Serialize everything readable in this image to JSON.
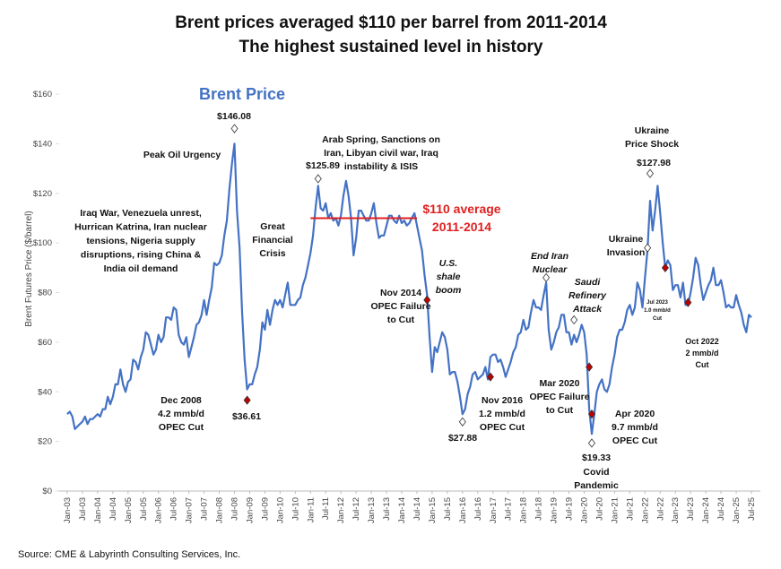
{
  "chart_data": {
    "type": "line",
    "title": [
      "Brent prices averaged $110 per barrel from 2011-2014",
      "The highest sustained level in history"
    ],
    "y_label": "Brent Futures Price ($/barrel)",
    "source": "Source: CME & Labyrinth Consulting Services, Inc.",
    "xlim": [
      "2003-01",
      "2025-07"
    ],
    "ylim": [
      0,
      160
    ],
    "yticks": [
      {
        "value": 0,
        "label": "$0"
      },
      {
        "value": 20,
        "label": "$20"
      },
      {
        "value": 40,
        "label": "$40"
      },
      {
        "value": 60,
        "label": "$60"
      },
      {
        "value": 80,
        "label": "$80"
      },
      {
        "value": 100,
        "label": "$100"
      },
      {
        "value": 120,
        "label": "$120"
      },
      {
        "value": 140,
        "label": "$140"
      },
      {
        "value": 160,
        "label": "$160"
      }
    ],
    "xticks": [
      {
        "value": "2003-01",
        "label": "Jan-03"
      },
      {
        "value": "2003-07",
        "label": "Jul-03"
      },
      {
        "value": "2004-01",
        "label": "Jan-04"
      },
      {
        "value": "2004-07",
        "label": "Jul-04"
      },
      {
        "value": "2005-01",
        "label": "Jan-05"
      },
      {
        "value": "2005-07",
        "label": "Jul-05"
      },
      {
        "value": "2006-01",
        "label": "Jan-06"
      },
      {
        "value": "2006-07",
        "label": "Jul-06"
      },
      {
        "value": "2007-01",
        "label": "Jan-07"
      },
      {
        "value": "2007-07",
        "label": "Jul-07"
      },
      {
        "value": "2008-01",
        "label": "Jan-08"
      },
      {
        "value": "2008-07",
        "label": "Jul-08"
      },
      {
        "value": "2009-01",
        "label": "Jan-09"
      },
      {
        "value": "2009-07",
        "label": "Jul-09"
      },
      {
        "value": "2010-01",
        "label": "Jan-10"
      },
      {
        "value": "2010-07",
        "label": "Jul-10"
      },
      {
        "value": "2011-01",
        "label": "Jan-11"
      },
      {
        "value": "2011-07",
        "label": "Jul-11"
      },
      {
        "value": "2012-01",
        "label": "Jan-12"
      },
      {
        "value": "2012-07",
        "label": "Jul-12"
      },
      {
        "value": "2013-01",
        "label": "Jan-13"
      },
      {
        "value": "2013-07",
        "label": "Jul-13"
      },
      {
        "value": "2014-01",
        "label": "Jan-14"
      },
      {
        "value": "2014-07",
        "label": "Jul-14"
      },
      {
        "value": "2015-01",
        "label": "Jan-15"
      },
      {
        "value": "2015-07",
        "label": "Jul-15"
      },
      {
        "value": "2016-01",
        "label": "Jan-16"
      },
      {
        "value": "2016-07",
        "label": "Jul-16"
      },
      {
        "value": "2017-01",
        "label": "Jan-17"
      },
      {
        "value": "2017-07",
        "label": "Jul-17"
      },
      {
        "value": "2018-01",
        "label": "Jan-18"
      },
      {
        "value": "2018-07",
        "label": "Jul-18"
      },
      {
        "value": "2019-01",
        "label": "Jan-19"
      },
      {
        "value": "2019-07",
        "label": "Jul-19"
      },
      {
        "value": "2020-01",
        "label": "Jan-20"
      },
      {
        "value": "2020-07",
        "label": "Jul-20"
      },
      {
        "value": "2021-01",
        "label": "Jan-21"
      },
      {
        "value": "2021-07",
        "label": "Jul-21"
      },
      {
        "value": "2022-01",
        "label": "Jan-22"
      },
      {
        "value": "2022-07",
        "label": "Jul-22"
      },
      {
        "value": "2023-01",
        "label": "Jan-23"
      },
      {
        "value": "2023-07",
        "label": "Jul-23"
      },
      {
        "value": "2024-01",
        "label": "Jan-24"
      },
      {
        "value": "2024-07",
        "label": "Jul-24"
      },
      {
        "value": "2025-01",
        "label": "Jan-25"
      },
      {
        "value": "2025-07",
        "label": "Jul-25"
      }
    ],
    "series": [
      {
        "name": "Brent Price",
        "color": "#4472c4",
        "x": [
          "2003-01",
          "2003-02",
          "2003-03",
          "2003-04",
          "2003-05",
          "2003-06",
          "2003-07",
          "2003-08",
          "2003-09",
          "2003-10",
          "2003-11",
          "2003-12",
          "2004-01",
          "2004-02",
          "2004-03",
          "2004-04",
          "2004-05",
          "2004-06",
          "2004-07",
          "2004-08",
          "2004-09",
          "2004-10",
          "2004-11",
          "2004-12",
          "2005-01",
          "2005-02",
          "2005-03",
          "2005-04",
          "2005-05",
          "2005-06",
          "2005-07",
          "2005-08",
          "2005-09",
          "2005-10",
          "2005-11",
          "2005-12",
          "2006-01",
          "2006-02",
          "2006-03",
          "2006-04",
          "2006-05",
          "2006-06",
          "2006-07",
          "2006-08",
          "2006-09",
          "2006-10",
          "2006-11",
          "2006-12",
          "2007-01",
          "2007-02",
          "2007-03",
          "2007-04",
          "2007-05",
          "2007-06",
          "2007-07",
          "2007-08",
          "2007-09",
          "2007-10",
          "2007-11",
          "2007-12",
          "2008-01",
          "2008-02",
          "2008-03",
          "2008-04",
          "2008-05",
          "2008-06",
          "2008-07",
          "2008-08",
          "2008-09",
          "2008-10",
          "2008-11",
          "2008-12",
          "2009-01",
          "2009-02",
          "2009-03",
          "2009-04",
          "2009-05",
          "2009-06",
          "2009-07",
          "2009-08",
          "2009-09",
          "2009-10",
          "2009-11",
          "2009-12",
          "2010-01",
          "2010-02",
          "2010-03",
          "2010-04",
          "2010-05",
          "2010-06",
          "2010-07",
          "2010-08",
          "2010-09",
          "2010-10",
          "2010-11",
          "2010-12",
          "2011-01",
          "2011-02",
          "2011-03",
          "2011-04",
          "2011-05",
          "2011-06",
          "2011-07",
          "2011-08",
          "2011-09",
          "2011-10",
          "2011-11",
          "2011-12",
          "2012-01",
          "2012-02",
          "2012-03",
          "2012-04",
          "2012-05",
          "2012-06",
          "2012-07",
          "2012-08",
          "2012-09",
          "2012-10",
          "2012-11",
          "2012-12",
          "2013-01",
          "2013-02",
          "2013-03",
          "2013-04",
          "2013-05",
          "2013-06",
          "2013-07",
          "2013-08",
          "2013-09",
          "2013-10",
          "2013-11",
          "2013-12",
          "2014-01",
          "2014-02",
          "2014-03",
          "2014-04",
          "2014-05",
          "2014-06",
          "2014-07",
          "2014-08",
          "2014-09",
          "2014-10",
          "2014-11",
          "2014-12",
          "2015-01",
          "2015-02",
          "2015-03",
          "2015-04",
          "2015-05",
          "2015-06",
          "2015-07",
          "2015-08",
          "2015-09",
          "2015-10",
          "2015-11",
          "2015-12",
          "2016-01",
          "2016-02",
          "2016-03",
          "2016-04",
          "2016-05",
          "2016-06",
          "2016-07",
          "2016-08",
          "2016-09",
          "2016-10",
          "2016-11",
          "2016-12",
          "2017-01",
          "2017-02",
          "2017-03",
          "2017-04",
          "2017-05",
          "2017-06",
          "2017-07",
          "2017-08",
          "2017-09",
          "2017-10",
          "2017-11",
          "2017-12",
          "2018-01",
          "2018-02",
          "2018-03",
          "2018-04",
          "2018-05",
          "2018-06",
          "2018-07",
          "2018-08",
          "2018-09",
          "2018-10",
          "2018-11",
          "2018-12",
          "2019-01",
          "2019-02",
          "2019-03",
          "2019-04",
          "2019-05",
          "2019-06",
          "2019-07",
          "2019-08",
          "2019-09",
          "2019-10",
          "2019-11",
          "2019-12",
          "2020-01",
          "2020-02",
          "2020-03",
          "2020-04",
          "2020-05",
          "2020-06",
          "2020-07",
          "2020-08",
          "2020-09",
          "2020-10",
          "2020-11",
          "2020-12",
          "2021-01",
          "2021-02",
          "2021-03",
          "2021-04",
          "2021-05",
          "2021-06",
          "2021-07",
          "2021-08",
          "2021-09",
          "2021-10",
          "2021-11",
          "2021-12",
          "2022-01",
          "2022-02",
          "2022-03",
          "2022-04",
          "2022-05",
          "2022-06",
          "2022-07",
          "2022-08",
          "2022-09",
          "2022-10",
          "2022-11",
          "2022-12",
          "2023-01",
          "2023-02",
          "2023-03",
          "2023-04",
          "2023-05",
          "2023-06",
          "2023-07",
          "2023-08",
          "2023-09",
          "2023-10",
          "2023-11",
          "2023-12",
          "2024-01",
          "2024-02",
          "2024-03",
          "2024-04",
          "2024-05",
          "2024-06",
          "2024-07",
          "2024-08",
          "2024-09",
          "2024-10",
          "2024-11",
          "2024-12",
          "2025-01",
          "2025-02",
          "2025-03",
          "2025-04",
          "2025-05",
          "2025-06",
          "2025-07"
        ],
        "values": [
          31,
          32,
          30,
          25,
          26,
          27,
          28,
          30,
          27,
          29,
          29,
          30,
          31,
          30,
          33,
          33,
          38,
          35,
          38,
          43,
          43,
          49,
          43,
          40,
          44,
          45,
          53,
          52,
          49,
          54,
          57,
          64,
          63,
          59,
          55,
          57,
          63,
          60,
          62,
          70,
          70,
          69,
          74,
          73,
          63,
          60,
          59,
          62,
          54,
          58,
          62,
          67,
          68,
          71,
          77,
          71,
          77,
          82,
          92,
          91,
          92,
          95,
          103,
          109,
          122,
          132,
          140,
          113,
          98,
          72,
          53,
          41,
          43,
          43,
          47,
          50,
          57,
          68,
          65,
          73,
          67,
          73,
          77,
          75,
          77,
          74,
          79,
          84,
          75,
          75,
          75,
          77,
          78,
          83,
          86,
          91,
          96,
          103,
          114,
          123,
          114,
          113,
          116,
          110,
          112,
          109,
          110,
          107,
          111,
          119,
          125,
          119,
          110,
          95,
          102,
          113,
          113,
          111,
          109,
          109,
          112,
          116,
          108,
          102,
          103,
          103,
          107,
          111,
          111,
          109,
          108,
          111,
          108,
          109,
          107,
          108,
          110,
          112,
          107,
          102,
          97,
          87,
          79,
          62,
          48,
          58,
          56,
          60,
          64,
          62,
          57,
          47,
          48,
          48,
          44,
          38,
          31,
          33,
          39,
          42,
          47,
          48,
          45,
          46,
          47,
          50,
          45,
          54,
          55,
          55,
          52,
          53,
          50,
          46,
          49,
          52,
          56,
          58,
          63,
          64,
          69,
          65,
          66,
          72,
          77,
          74,
          74,
          73,
          79,
          84,
          65,
          57,
          60,
          64,
          66,
          71,
          71,
          64,
          64,
          59,
          63,
          60,
          63,
          67,
          64,
          55,
          33,
          23,
          31,
          40,
          43,
          45,
          41,
          40,
          43,
          50,
          55,
          62,
          65,
          65,
          68,
          73,
          75,
          71,
          74,
          84,
          81,
          74,
          86,
          97,
          117,
          105,
          113,
          123,
          112,
          100,
          90,
          93,
          91,
          81,
          83,
          83,
          78,
          84,
          75,
          75,
          80,
          86,
          94,
          91,
          83,
          77,
          80,
          83,
          85,
          90,
          83,
          83,
          85,
          80,
          74,
          75,
          74,
          74,
          79,
          75,
          72,
          67,
          64,
          71,
          70
        ]
      }
    ],
    "average": {
      "value": 110,
      "from": "2011-01",
      "to": "2014-07",
      "color": "#e02020",
      "label": [
        "$110 average",
        "2011-2014"
      ]
    },
    "markers": [
      {
        "x": "2008-07",
        "value": 146.08,
        "label": "$146.08",
        "color": "#ffffff"
      },
      {
        "x": "2008-12",
        "value": 36.61,
        "label": "$36.61",
        "color": "#c00000"
      },
      {
        "x": "2011-04",
        "value": 125.89,
        "label": "$125.89",
        "color": "#ffffff"
      },
      {
        "x": "2014-11",
        "value": 77,
        "color": "#c00000"
      },
      {
        "x": "2016-01",
        "value": 27.88,
        "label": "$27.88",
        "color": "#ffffff"
      },
      {
        "x": "2016-12",
        "value": 46,
        "color": "#c00000"
      },
      {
        "x": "2018-10",
        "value": 86,
        "color": "#ffffff"
      },
      {
        "x": "2019-09",
        "value": 69,
        "color": "#ffffff"
      },
      {
        "x": "2020-03",
        "value": 50,
        "color": "#c00000"
      },
      {
        "x": "2020-04",
        "value": 19.33,
        "label": "$19.33",
        "color": "#ffffff"
      },
      {
        "x": "2020-04",
        "value": 31,
        "color": "#c00000"
      },
      {
        "x": "2022-02",
        "value": 98,
        "color": "#ffffff"
      },
      {
        "x": "2022-03",
        "value": 127.98,
        "label": "$127.98",
        "color": "#ffffff"
      },
      {
        "x": "2022-09",
        "value": 90,
        "color": "#c00000"
      },
      {
        "x": "2023-06",
        "value": 76,
        "color": "#c00000"
      }
    ],
    "annotations": [
      {
        "lines": [
          "Peak Oil Urgency"
        ]
      },
      {
        "lines": [
          "Iraq War, Venezuela unrest,",
          "Hurrican Katrina, Iran nuclear",
          "tensions, Nigeria supply",
          "disruptions, rising China &",
          "India oil demand"
        ]
      },
      {
        "lines": [
          "Dec 2008",
          "4.2 mmb/d",
          "OPEC Cut"
        ]
      },
      {
        "lines": [
          "Great",
          "Financial",
          "Crisis"
        ]
      },
      {
        "lines": [
          "Arab Spring, Sanctions on",
          "Iran, Libyan civil war, Iraq",
          "instability & ISIS"
        ]
      },
      {
        "lines": [
          "Nov 2014",
          "OPEC Failure",
          "to Cut"
        ]
      },
      {
        "lines": [
          "U.S.",
          "shale",
          "boom"
        ]
      },
      {
        "lines": [
          "Nov 2016",
          "1.2 mmb/d",
          "OPEC Cut"
        ]
      },
      {
        "lines": [
          "End Iran",
          "Nuclear"
        ]
      },
      {
        "lines": [
          "Saudi",
          "Refinery",
          "Attack"
        ]
      },
      {
        "lines": [
          "Mar 2020",
          "OPEC Failure",
          "to Cut"
        ]
      },
      {
        "lines": [
          "Apr 2020",
          "9.7 mmb/d",
          "OPEC Cut"
        ]
      },
      {
        "lines": [
          "Covid",
          "Pandemic"
        ]
      },
      {
        "lines": [
          "Ukraine",
          "Price Shock"
        ]
      },
      {
        "lines": [
          "Ukraine",
          "Invasion"
        ]
      },
      {
        "lines": [
          "Jul 2023",
          "1.0 mmb/d",
          "Cut"
        ]
      },
      {
        "lines": [
          "Oct 2022",
          "2 mmb/d",
          "Cut"
        ]
      }
    ]
  }
}
